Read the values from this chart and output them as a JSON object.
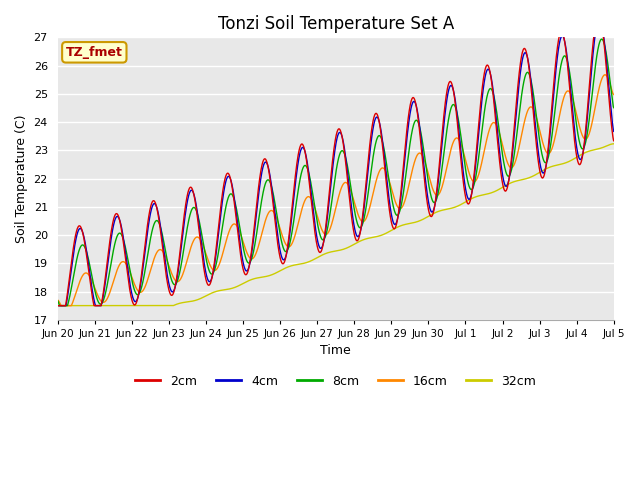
{
  "title": "Tonzi Soil Temperature Set A",
  "xlabel": "Time",
  "ylabel": "Soil Temperature (C)",
  "ylim": [
    17.0,
    27.0
  ],
  "yticks": [
    17.0,
    18.0,
    19.0,
    20.0,
    21.0,
    22.0,
    23.0,
    24.0,
    25.0,
    26.0,
    27.0
  ],
  "bg_color": "#e8e8e8",
  "legend_label": "TZ_fmet",
  "legend_box_color": "#ffffcc",
  "legend_box_border": "#cc9900",
  "series_colors": {
    "2cm": "#dd0000",
    "4cm": "#0000cc",
    "8cm": "#00aa00",
    "16cm": "#ff8800",
    "32cm": "#cccc00"
  },
  "x_tick_labels": [
    "Jun 20",
    "Jun 21",
    "Jun 22",
    "Jun 23",
    "Jun 24",
    "Jun 25",
    "Jun 26",
    "Jun 27",
    "Jun 28",
    "Jun 29",
    "Jun 30",
    "Jul 1",
    "Jul 2",
    "Jul 3",
    "Jul 4",
    "Jul 5"
  ],
  "total_days": 15
}
